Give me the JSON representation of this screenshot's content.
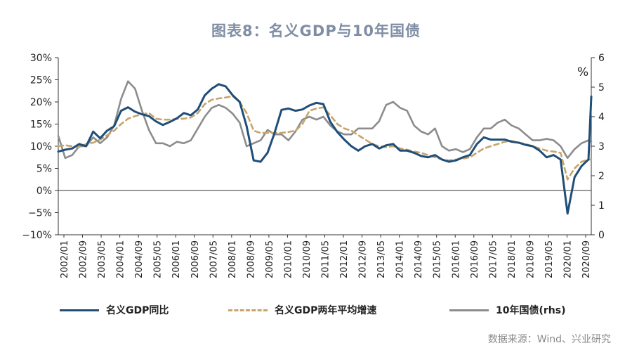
{
  "title": "图表8：名义GDP与10年国债",
  "source": "数据来源：Wind、兴业研究",
  "chart_data": {
    "type": "line",
    "left_axis": {
      "ylim": [
        -10,
        30
      ],
      "ticks": [
        -10,
        -5,
        0,
        5,
        10,
        15,
        20,
        25,
        30
      ],
      "tick_labels": [
        "−10%",
        "−5%",
        "0%",
        "5%",
        "10%",
        "15%",
        "20%",
        "25%",
        "30%"
      ]
    },
    "right_axis": {
      "label": "%",
      "ylim": [
        0,
        6
      ],
      "ticks": [
        0,
        1,
        2,
        3,
        4,
        5,
        6
      ],
      "tick_labels": [
        "0",
        "1",
        "2",
        "3",
        "4",
        "5",
        "6"
      ]
    },
    "x_labels": [
      "2002/01",
      "2002/09",
      "2003/05",
      "2004/01",
      "2004/09",
      "2005/05",
      "2006/01",
      "2006/09",
      "2007/05",
      "2008/01",
      "2008/09",
      "2009/05",
      "2010/01",
      "2010/09",
      "2011/05",
      "2012/01",
      "2012/09",
      "2013/05",
      "2014/01",
      "2014/09",
      "2015/05",
      "2016/01",
      "2016/09",
      "2017/05",
      "2018/01",
      "2018/09",
      "2019/05",
      "2020/01",
      "2020/09"
    ],
    "x_range": [
      2002.0,
      2021.1
    ],
    "series": [
      {
        "name": "名义GDP同比",
        "axis": "left",
        "color": "#1f4e79",
        "style": "solid",
        "x": [
          2002.0,
          2002.25,
          2002.5,
          2002.75,
          2003.0,
          2003.25,
          2003.5,
          2003.75,
          2004.0,
          2004.25,
          2004.5,
          2004.75,
          2005.0,
          2005.25,
          2005.5,
          2005.75,
          2006.0,
          2006.25,
          2006.5,
          2006.75,
          2007.0,
          2007.25,
          2007.5,
          2007.75,
          2008.0,
          2008.25,
          2008.5,
          2008.75,
          2009.0,
          2009.25,
          2009.5,
          2009.75,
          2010.0,
          2010.25,
          2010.5,
          2010.75,
          2011.0,
          2011.25,
          2011.5,
          2011.75,
          2012.0,
          2012.25,
          2012.5,
          2012.75,
          2013.0,
          2013.25,
          2013.5,
          2013.75,
          2014.0,
          2014.25,
          2014.5,
          2014.75,
          2015.0,
          2015.25,
          2015.5,
          2015.75,
          2016.0,
          2016.25,
          2016.5,
          2016.75,
          2017.0,
          2017.25,
          2017.5,
          2017.75,
          2018.0,
          2018.25,
          2018.5,
          2018.75,
          2019.0,
          2019.25,
          2019.5,
          2019.75,
          2020.0,
          2020.25,
          2020.5,
          2020.75,
          2021.0,
          2021.1
        ],
        "values": [
          8.8,
          9.2,
          9.5,
          10.5,
          10.0,
          13.3,
          11.8,
          13.5,
          14.5,
          18.0,
          18.8,
          17.8,
          17.2,
          16.8,
          15.6,
          14.8,
          15.5,
          16.3,
          17.5,
          17.0,
          18.3,
          21.5,
          23.0,
          24.0,
          23.5,
          21.5,
          20.0,
          14.5,
          6.8,
          6.5,
          8.5,
          13.0,
          18.2,
          18.5,
          18.0,
          18.3,
          19.2,
          19.8,
          19.5,
          15.5,
          13.2,
          11.5,
          10.0,
          9.0,
          10.0,
          10.5,
          9.5,
          10.2,
          10.5,
          9.0,
          9.0,
          8.5,
          7.8,
          7.5,
          8.0,
          7.0,
          6.5,
          6.8,
          7.5,
          8.0,
          10.5,
          12.0,
          11.5,
          11.5,
          11.5,
          11.0,
          10.8,
          10.3,
          10.0,
          9.0,
          7.5,
          8.0,
          7.0,
          -5.2,
          3.0,
          5.5,
          7.0,
          21.2
        ]
      },
      {
        "name": "名义GDP两年平均增速",
        "axis": "left",
        "color": "#c8a46a",
        "style": "dashed",
        "x": [
          2002.0,
          2002.25,
          2002.5,
          2002.75,
          2003.0,
          2003.25,
          2003.5,
          2003.75,
          2004.0,
          2004.25,
          2004.5,
          2004.75,
          2005.0,
          2005.25,
          2005.5,
          2005.75,
          2006.0,
          2006.25,
          2006.5,
          2006.75,
          2007.0,
          2007.25,
          2007.5,
          2007.75,
          2008.0,
          2008.25,
          2008.5,
          2008.75,
          2009.0,
          2009.25,
          2009.5,
          2009.75,
          2010.0,
          2010.25,
          2010.5,
          2010.75,
          2011.0,
          2011.25,
          2011.5,
          2011.75,
          2012.0,
          2012.25,
          2012.5,
          2012.75,
          2013.0,
          2013.25,
          2013.5,
          2013.75,
          2014.0,
          2014.25,
          2014.5,
          2014.75,
          2015.0,
          2015.25,
          2015.5,
          2015.75,
          2016.0,
          2016.25,
          2016.5,
          2016.75,
          2017.0,
          2017.25,
          2017.5,
          2017.75,
          2018.0,
          2018.25,
          2018.5,
          2018.75,
          2019.0,
          2019.25,
          2019.5,
          2019.75,
          2020.0,
          2020.25,
          2020.5,
          2020.75,
          2021.0,
          2021.1
        ],
        "values": [
          10.0,
          10.2,
          10.0,
          9.8,
          10.5,
          10.8,
          11.5,
          12.5,
          13.5,
          15.0,
          16.2,
          16.8,
          17.2,
          17.5,
          16.2,
          16.0,
          16.0,
          16.2,
          16.2,
          16.5,
          17.5,
          19.5,
          20.5,
          20.8,
          21.0,
          21.3,
          20.0,
          17.5,
          13.5,
          13.0,
          13.0,
          13.0,
          13.0,
          13.2,
          13.5,
          15.0,
          18.0,
          18.5,
          18.8,
          17.0,
          15.0,
          14.0,
          13.5,
          12.5,
          11.5,
          10.5,
          10.0,
          9.8,
          10.0,
          9.5,
          9.2,
          8.8,
          8.5,
          8.0,
          7.5,
          7.0,
          6.8,
          7.0,
          7.2,
          7.5,
          8.5,
          9.5,
          10.0,
          10.5,
          11.0,
          11.2,
          10.8,
          10.5,
          10.0,
          9.5,
          9.0,
          8.8,
          8.5,
          2.5,
          5.0,
          6.5,
          7.0,
          7.0
        ]
      },
      {
        "name": "10年国债(rhs)",
        "axis": "right",
        "color": "#8c8c8c",
        "style": "solid",
        "x": [
          2002.0,
          2002.25,
          2002.5,
          2002.75,
          2003.0,
          2003.25,
          2003.5,
          2003.75,
          2004.0,
          2004.25,
          2004.5,
          2004.75,
          2005.0,
          2005.25,
          2005.5,
          2005.75,
          2006.0,
          2006.25,
          2006.5,
          2006.75,
          2007.0,
          2007.25,
          2007.5,
          2007.75,
          2008.0,
          2008.25,
          2008.5,
          2008.75,
          2009.0,
          2009.25,
          2009.5,
          2009.75,
          2010.0,
          2010.25,
          2010.5,
          2010.75,
          2011.0,
          2011.25,
          2011.5,
          2011.75,
          2012.0,
          2012.25,
          2012.5,
          2012.75,
          2013.0,
          2013.25,
          2013.5,
          2013.75,
          2014.0,
          2014.25,
          2014.5,
          2014.75,
          2015.0,
          2015.25,
          2015.5,
          2015.75,
          2016.0,
          2016.25,
          2016.5,
          2016.75,
          2017.0,
          2017.25,
          2017.5,
          2017.75,
          2018.0,
          2018.25,
          2018.5,
          2018.75,
          2019.0,
          2019.25,
          2019.5,
          2019.75,
          2020.0,
          2020.25,
          2020.5,
          2020.75,
          2021.0,
          2021.1
        ],
        "values": [
          3.35,
          2.6,
          2.7,
          3.0,
          3.0,
          3.3,
          3.1,
          3.3,
          3.7,
          4.6,
          5.2,
          4.95,
          4.2,
          3.55,
          3.1,
          3.1,
          3.0,
          3.15,
          3.1,
          3.2,
          3.6,
          4.0,
          4.3,
          4.4,
          4.3,
          4.1,
          3.8,
          3.0,
          3.1,
          3.2,
          3.55,
          3.4,
          3.4,
          3.2,
          3.5,
          3.9,
          4.0,
          3.9,
          4.0,
          3.7,
          3.5,
          3.4,
          3.4,
          3.6,
          3.6,
          3.6,
          3.85,
          4.4,
          4.5,
          4.3,
          4.2,
          3.7,
          3.5,
          3.4,
          3.6,
          3.0,
          2.85,
          2.9,
          2.8,
          2.9,
          3.3,
          3.6,
          3.6,
          3.8,
          3.9,
          3.7,
          3.6,
          3.4,
          3.2,
          3.2,
          3.25,
          3.2,
          3.0,
          2.6,
          2.9,
          3.1,
          3.2,
          3.15
        ]
      }
    ]
  }
}
